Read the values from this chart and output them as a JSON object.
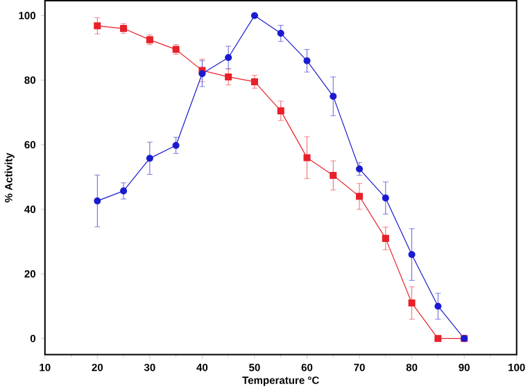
{
  "chart_data": {
    "type": "line",
    "xlabel": "Temperature °C",
    "ylabel": "% Activity",
    "x": [
      20,
      25,
      30,
      35,
      40,
      45,
      50,
      55,
      60,
      65,
      70,
      75,
      80,
      85,
      90
    ],
    "series": [
      {
        "color": "#e8202a",
        "marker": "square",
        "values": [
          96.8,
          96,
          92.5,
          89.5,
          83,
          81,
          79.5,
          70.5,
          56,
          50.5,
          44,
          31,
          11,
          0,
          0
        ],
        "errors": [
          2.5,
          1.5,
          1.5,
          1.5,
          3.5,
          2.5,
          2,
          3,
          6.5,
          4.5,
          4,
          3.5,
          5,
          null,
          null
        ]
      },
      {
        "color": "#1a1ad0",
        "marker": "circle",
        "values": [
          42.6,
          45.7,
          55.8,
          59.8,
          82,
          87,
          100,
          94.5,
          86,
          75,
          52.5,
          43.5,
          26,
          10,
          0
        ],
        "errors": [
          8,
          2.5,
          5,
          2.5,
          4,
          3.5,
          null,
          2.5,
          3.5,
          6,
          2,
          5,
          8,
          4,
          null
        ]
      }
    ],
    "xlim": [
      10,
      100
    ],
    "ylim": [
      -5,
      104.6
    ],
    "xticks": [
      10,
      20,
      30,
      40,
      50,
      60,
      70,
      80,
      90,
      100
    ],
    "yticks": [
      0,
      20,
      40,
      60,
      80,
      100
    ],
    "grid": false,
    "line_style": "solid"
  }
}
